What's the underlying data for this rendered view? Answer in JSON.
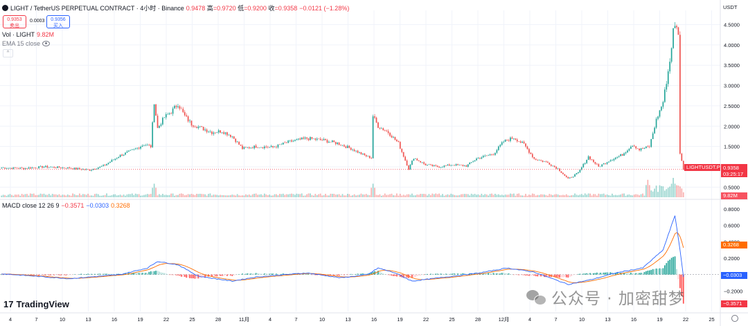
{
  "header": {
    "symbol_title": "LIGHT / TetherUS PERPETUAL CONTRACT · 4小时 · Binance",
    "ohlc": [
      {
        "label": "",
        "value": "0.9478"
      },
      {
        "label": "高",
        "value": "=0.9720"
      },
      {
        "label": "低",
        "value": "=0.9200"
      },
      {
        "label": "收",
        "value": "=0.9358"
      }
    ],
    "change": "−0.0121 (−1.28%)",
    "sell_price": "0.9353",
    "sell_label": "卖出",
    "spread": "0.0003",
    "buy_price": "0.9356",
    "buy_label": "买入",
    "vol_label": "Vol · LIGHT",
    "vol_value": "9.82M",
    "ema_label": "EMA 15 close",
    "macd_label": "MACD close 12 26 9",
    "macd_hist": "−0.3571",
    "macd_line": "−0.0303",
    "macd_signal": "0.3268"
  },
  "currency": "USDT",
  "price_axis": [
    "4.5000",
    "4.0000",
    "3.5000",
    "3.0000",
    "2.5000",
    "2.0000",
    "1.5000",
    "1.0000",
    "0.5000"
  ],
  "macd_axis": [
    "0.8000",
    "0.6000",
    "0.4000",
    "0.2000",
    "−0.2000"
  ],
  "tags": {
    "symbol": "LIGHTUSDT.P",
    "last_price": "0.9358",
    "countdown": "03:25:17",
    "volume": "9.82M",
    "signal": "0.3268",
    "macd": "−0.0303",
    "hist": "−0.3571"
  },
  "date_labels": [
    "4",
    "7",
    "10",
    "13",
    "16",
    "19",
    "22",
    "25",
    "28",
    "11月",
    "4",
    "7",
    "10",
    "13",
    "16",
    "19",
    "22",
    "25",
    "28",
    "12月",
    "4",
    "7",
    "10",
    "13",
    "16",
    "19",
    "22",
    "25"
  ],
  "brand": "TradingView",
  "watermark": "公众号 · 加密甜梦",
  "colors": {
    "up": "#26a69a",
    "down": "#ef5350",
    "macd": "#2962ff",
    "signal": "#ff6d00",
    "last": "#f23645"
  },
  "chart_data": {
    "type": "candlestick",
    "title": "LIGHT / TetherUS PERPETUAL CONTRACT · 4小时 · Binance",
    "interval": "4小时",
    "y_range": [
      0.25,
      4.85
    ],
    "keypoints": [
      [
        0,
        0.98
      ],
      [
        12,
        0.96
      ],
      [
        25,
        1.0
      ],
      [
        40,
        0.97
      ],
      [
        52,
        0.92
      ],
      [
        60,
        1.02
      ],
      [
        70,
        1.28
      ],
      [
        78,
        1.42
      ],
      [
        84,
        1.55
      ],
      [
        88,
        1.5
      ],
      [
        90,
        2.6
      ],
      [
        92,
        1.95
      ],
      [
        96,
        2.22
      ],
      [
        100,
        2.35
      ],
      [
        104,
        2.55
      ],
      [
        108,
        2.25
      ],
      [
        112,
        2.05
      ],
      [
        118,
        1.95
      ],
      [
        124,
        1.85
      ],
      [
        130,
        1.88
      ],
      [
        136,
        1.75
      ],
      [
        142,
        1.45
      ],
      [
        150,
        1.5
      ],
      [
        160,
        1.48
      ],
      [
        170,
        1.62
      ],
      [
        180,
        1.7
      ],
      [
        190,
        1.65
      ],
      [
        198,
        1.58
      ],
      [
        206,
        1.45
      ],
      [
        214,
        1.28
      ],
      [
        218,
        1.22
      ],
      [
        219,
        2.25
      ],
      [
        222,
        2.0
      ],
      [
        228,
        1.85
      ],
      [
        234,
        1.58
      ],
      [
        240,
        0.95
      ],
      [
        243,
        1.22
      ],
      [
        250,
        1.05
      ],
      [
        258,
        1.0
      ],
      [
        266,
        1.05
      ],
      [
        274,
        1.02
      ],
      [
        280,
        1.2
      ],
      [
        290,
        1.32
      ],
      [
        296,
        1.62
      ],
      [
        302,
        1.72
      ],
      [
        308,
        1.55
      ],
      [
        314,
        1.2
      ],
      [
        322,
        1.1
      ],
      [
        328,
        0.95
      ],
      [
        334,
        0.7
      ],
      [
        340,
        0.85
      ],
      [
        346,
        1.25
      ],
      [
        352,
        1.0
      ],
      [
        358,
        1.15
      ],
      [
        366,
        1.3
      ],
      [
        372,
        1.55
      ],
      [
        376,
        1.42
      ],
      [
        382,
        1.5
      ],
      [
        386,
        2.15
      ],
      [
        390,
        2.6
      ],
      [
        394,
        3.6
      ],
      [
        396,
        4.35
      ],
      [
        398,
        4.5
      ],
      [
        399,
        4.2
      ],
      [
        400,
        1.35
      ],
      [
        402,
        0.95
      ]
    ],
    "volume_spikes": [
      [
        90,
        0.7
      ],
      [
        219,
        0.7
      ],
      [
        381,
        0.9
      ],
      [
        396,
        1.0
      ],
      [
        400,
        0.4
      ]
    ],
    "macd_keypoints": [
      [
        0,
        0.01
      ],
      [
        40,
        -0.05
      ],
      [
        70,
        0.0
      ],
      [
        86,
        0.08
      ],
      [
        92,
        0.16
      ],
      [
        104,
        0.12
      ],
      [
        116,
        -0.02
      ],
      [
        136,
        -0.08
      ],
      [
        150,
        -0.03
      ],
      [
        180,
        0.02
      ],
      [
        200,
        -0.04
      ],
      [
        216,
        0.0
      ],
      [
        222,
        0.08
      ],
      [
        232,
        0.02
      ],
      [
        242,
        -0.08
      ],
      [
        262,
        -0.03
      ],
      [
        282,
        0.02
      ],
      [
        298,
        0.08
      ],
      [
        314,
        0.03
      ],
      [
        334,
        -0.12
      ],
      [
        348,
        -0.06
      ],
      [
        362,
        0.02
      ],
      [
        378,
        0.08
      ],
      [
        390,
        0.3
      ],
      [
        397,
        0.72
      ],
      [
        400,
        0.3
      ],
      [
        402,
        -0.03
      ]
    ],
    "last_close": 0.9358
  }
}
